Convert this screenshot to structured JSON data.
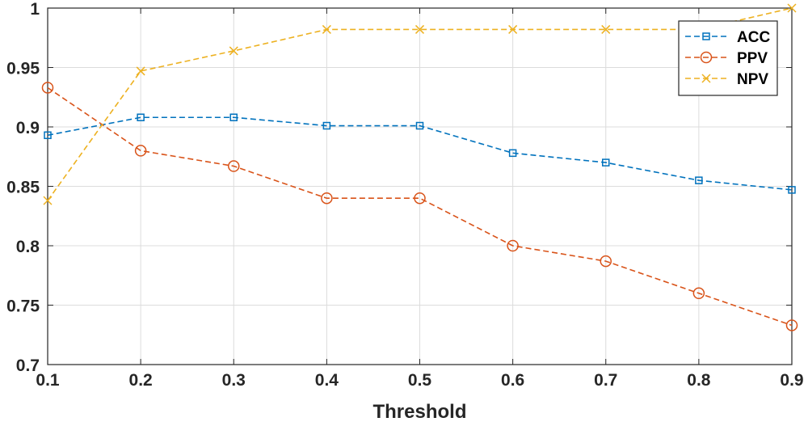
{
  "chart_data": {
    "type": "line",
    "title": "",
    "xlabel": "Threshold",
    "ylabel": "",
    "xlim": [
      0.1,
      0.9
    ],
    "ylim": [
      0.7,
      1.0
    ],
    "grid": true,
    "legend_position": "top-right",
    "x": [
      0.1,
      0.2,
      0.3,
      0.4,
      0.5,
      0.6,
      0.7,
      0.8,
      0.9
    ],
    "x_tick_labels": [
      "0.1",
      "0.2",
      "0.3",
      "0.4",
      "0.5",
      "0.6",
      "0.7",
      "0.8",
      "0.9"
    ],
    "y_ticks": [
      0.7,
      0.75,
      0.8,
      0.85,
      0.9,
      0.95,
      1.0
    ],
    "y_tick_labels": [
      "0.7",
      "0.75",
      "0.8",
      "0.85",
      "0.9",
      "0.95",
      "1"
    ],
    "series": [
      {
        "name": "ACC",
        "color": "#0072BD",
        "marker": "square",
        "values": [
          0.893,
          0.908,
          0.908,
          0.901,
          0.901,
          0.878,
          0.87,
          0.855,
          0.847
        ]
      },
      {
        "name": "PPV",
        "color": "#D95319",
        "marker": "circle",
        "values": [
          0.933,
          0.88,
          0.867,
          0.84,
          0.84,
          0.8,
          0.787,
          0.76,
          0.733
        ]
      },
      {
        "name": "NPV",
        "color": "#EDB120",
        "marker": "x",
        "values": [
          0.838,
          0.947,
          0.964,
          0.982,
          0.982,
          0.982,
          0.982,
          0.982,
          1.0
        ]
      }
    ]
  }
}
